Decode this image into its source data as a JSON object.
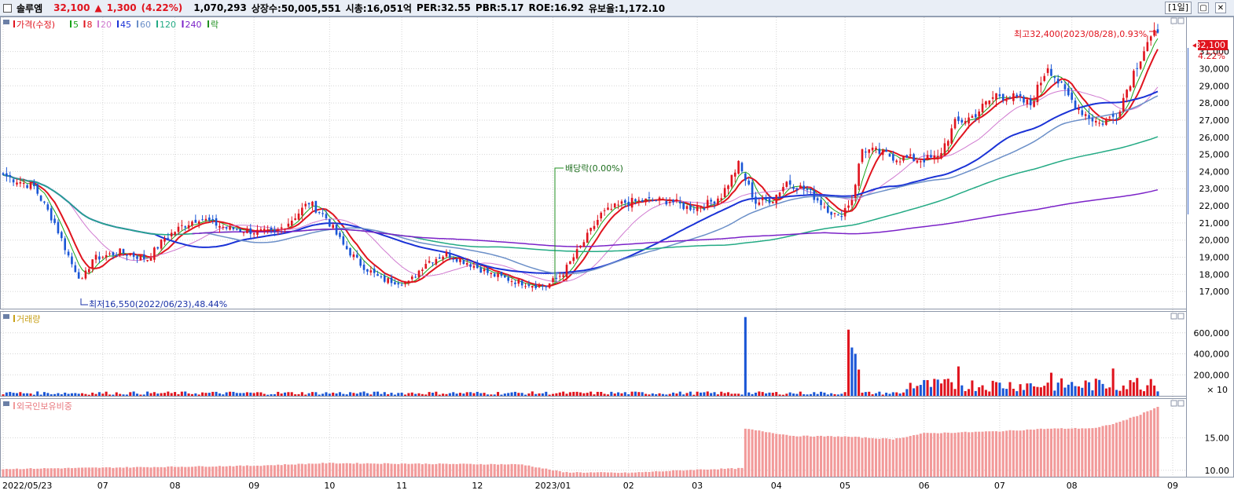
{
  "header": {
    "name": "솔루엠",
    "price": "32,100",
    "change_symbol": "▲",
    "change": "1,300",
    "change_pct": "(4.22%)",
    "volume": "1,070,293",
    "listed_shares": "상장수:50,005,551",
    "market_cap": "시총:16,051억",
    "per": "PER:32.55",
    "pbr": "PBR:5.17",
    "roe": "ROE:16.92",
    "turnover": "유보율:1,172.10",
    "timeframe": "[1일]",
    "minimize_glyph": "▢",
    "close_glyph": "✕"
  },
  "legend": {
    "price_label": "가격(수정)",
    "ma": [
      {
        "label": "5",
        "color": "#17a317"
      },
      {
        "label": "8",
        "color": "#e0141e"
      },
      {
        "label": "20",
        "color": "#d07ad0"
      },
      {
        "label": "45",
        "color": "#1a32d6"
      },
      {
        "label": "60",
        "color": "#6b8fc8"
      },
      {
        "label": "120",
        "color": "#23aa84"
      },
      {
        "label": "240",
        "color": "#7b22c8"
      }
    ],
    "extra_label": "락",
    "volume_label": "거래량",
    "foreign_label": "외국인보유비중"
  },
  "annotations": {
    "high": "최고32,400(2023/08/28),0.93%",
    "low": "최저16,550(2022/06/23),48.44%",
    "dividend": "배당락(0.00%)",
    "last_price_box": "32,100",
    "last_pct": "4.22%",
    "volume_unit": "× 10"
  },
  "colors": {
    "up": "#e0141e",
    "down": "#1a56d6",
    "volume_up": "#e0141e",
    "volume_down": "#1a56d6",
    "foreign_bar": "#f29a9a",
    "grid": "#c8c8c8",
    "panel_border": "#8c96a8"
  },
  "chart_data": [
    {
      "type": "candlestick",
      "title": "가격(수정)",
      "y_ticks": [
        17000,
        18000,
        19000,
        20000,
        21000,
        22000,
        23000,
        24000,
        25000,
        26000,
        27000,
        28000,
        29000,
        30000,
        31000
      ],
      "ylim": [
        16000,
        33000
      ],
      "x_ticks": [
        "2022/05/23",
        "07",
        "08",
        "09",
        "10",
        "11",
        "12",
        "2023/01",
        "02",
        "03",
        "04",
        "05",
        "06",
        "07",
        "08",
        "09"
      ],
      "close_anchors": [
        [
          "2022/05/23",
          23800
        ],
        [
          "2022/06/03",
          23100
        ],
        [
          "2022/06/13",
          21000
        ],
        [
          "2022/06/20",
          18600
        ],
        [
          "2022/06/23",
          17600
        ],
        [
          "2022/06/28",
          18900
        ],
        [
          "2022/07/08",
          19300
        ],
        [
          "2022/07/20",
          18900
        ],
        [
          "2022/07/27",
          20100
        ],
        [
          "2022/08/03",
          20800
        ],
        [
          "2022/08/10",
          21300
        ],
        [
          "2022/08/22",
          20700
        ],
        [
          "2022/09/01",
          20500
        ],
        [
          "2022/09/09",
          20400
        ],
        [
          "2022/09/16",
          21200
        ],
        [
          "2022/09/23",
          22200
        ],
        [
          "2022/09/30",
          21300
        ],
        [
          "2022/10/07",
          19700
        ],
        [
          "2022/10/14",
          18600
        ],
        [
          "2022/10/24",
          17700
        ],
        [
          "2022/11/03",
          17500
        ],
        [
          "2022/11/10",
          18700
        ],
        [
          "2022/11/18",
          19200
        ],
        [
          "2022/11/28",
          18700
        ],
        [
          "2022/12/07",
          18000
        ],
        [
          "2022/12/16",
          17600
        ],
        [
          "2022/12/23",
          17400
        ],
        [
          "2022/12/29",
          17300
        ],
        [
          "2023/01/05",
          18100
        ],
        [
          "2023/01/13",
          19900
        ],
        [
          "2023/01/20",
          21500
        ],
        [
          "2023/01/31",
          22200
        ],
        [
          "2023/02/08",
          22300
        ],
        [
          "2023/02/17",
          22300
        ],
        [
          "2023/02/24",
          21900
        ],
        [
          "2023/03/03",
          22000
        ],
        [
          "2023/03/10",
          22600
        ],
        [
          "2023/03/17",
          24400
        ],
        [
          "2023/03/24",
          22200
        ],
        [
          "2023/03/31",
          22400
        ],
        [
          "2023/04/06",
          23400
        ],
        [
          "2023/04/14",
          22900
        ],
        [
          "2023/04/21",
          22000
        ],
        [
          "2023/04/27",
          21300
        ],
        [
          "2023/05/03",
          22400
        ],
        [
          "2023/05/08",
          25300
        ],
        [
          "2023/05/15",
          25100
        ],
        [
          "2023/05/22",
          24800
        ],
        [
          "2023/05/31",
          24700
        ],
        [
          "2023/06/07",
          24800
        ],
        [
          "2023/06/14",
          26800
        ],
        [
          "2023/06/21",
          27200
        ],
        [
          "2023/06/30",
          28500
        ],
        [
          "2023/07/07",
          28300
        ],
        [
          "2023/07/14",
          27900
        ],
        [
          "2023/07/21",
          30200
        ],
        [
          "2023/07/28",
          28600
        ],
        [
          "2023/08/04",
          27500
        ],
        [
          "2023/08/11",
          26800
        ],
        [
          "2023/08/18",
          27300
        ],
        [
          "2023/08/25",
          29800
        ],
        [
          "2023/08/31",
          31600
        ],
        [
          "2023/09/05",
          32100
        ]
      ],
      "last_close": 32100,
      "high": {
        "value": 32400,
        "date": "2023/08/28"
      },
      "low": {
        "value": 16550,
        "date": "2022/06/23"
      }
    },
    {
      "type": "bar",
      "title": "거래량",
      "unit": "× 10",
      "y_ticks": [
        200000,
        400000,
        600000
      ],
      "baseline": 2000,
      "spikes": [
        [
          "2023/03/21",
          75000,
          "down"
        ],
        [
          "2023/05/02",
          63000,
          "up"
        ],
        [
          "2023/05/03",
          46000,
          "down"
        ],
        [
          "2023/05/04",
          40000,
          "down"
        ],
        [
          "2023/05/05",
          25000,
          "up"
        ],
        [
          "2023/06/15",
          28000,
          "up"
        ],
        [
          "2023/07/24",
          22000,
          "up"
        ],
        [
          "2023/08/17",
          26000,
          "up"
        ],
        [
          "2023/08/28",
          17000,
          "up"
        ],
        [
          "2023/09/01",
          16000,
          "up"
        ]
      ]
    },
    {
      "type": "bar",
      "title": "외국인보유비중",
      "y_ticks": [
        10.0,
        15.0
      ],
      "ylim": [
        9,
        21
      ],
      "levels": [
        [
          "2022/05/23",
          10.2
        ],
        [
          "2022/09/01",
          10.7
        ],
        [
          "2022/10/01",
          11.1
        ],
        [
          "2022/12/20",
          10.9
        ],
        [
          "2022/12/28",
          10.3
        ],
        [
          "2023/01/05",
          9.7
        ],
        [
          "2023/02/01",
          9.6
        ],
        [
          "2023/03/01",
          10.1
        ],
        [
          "2023/03/20",
          10.3
        ],
        [
          "2023/03/21",
          16.4
        ],
        [
          "2023/04/10",
          15.3
        ],
        [
          "2023/05/01",
          15.2
        ],
        [
          "2023/05/20",
          14.8
        ],
        [
          "2023/06/01",
          15.7
        ],
        [
          "2023/07/01",
          16.0
        ],
        [
          "2023/07/20",
          16.4
        ],
        [
          "2023/08/10",
          16.5
        ],
        [
          "2023/08/20",
          17.3
        ],
        [
          "2023/08/28",
          18.4
        ],
        [
          "2023/09/05",
          19.8
        ]
      ]
    }
  ]
}
